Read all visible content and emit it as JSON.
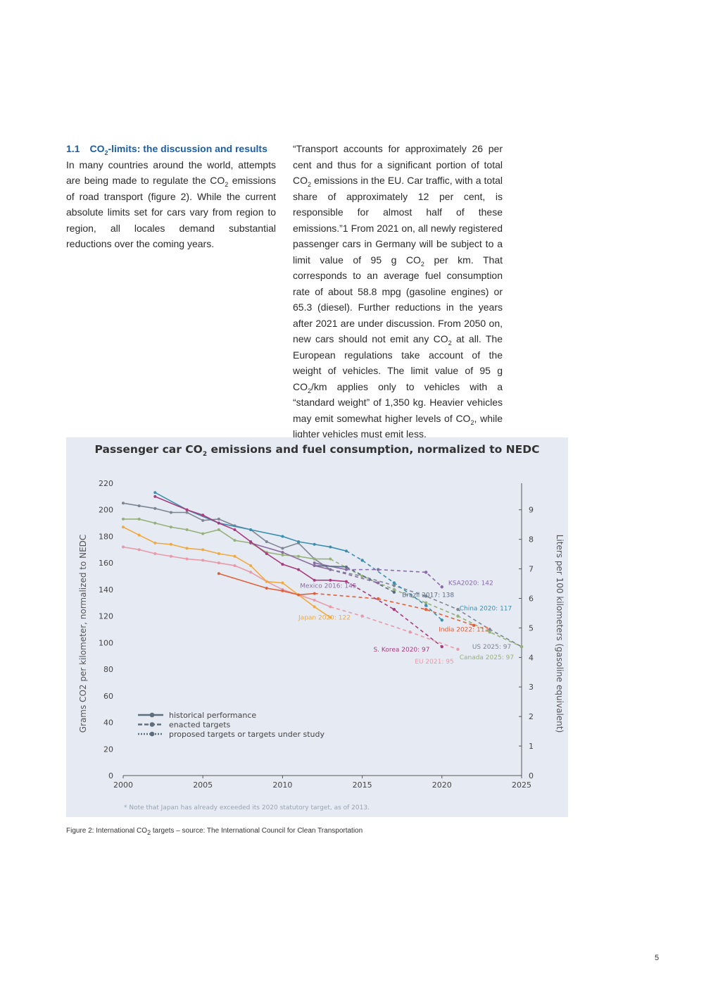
{
  "section": {
    "number": "1.1",
    "title_pre": "CO",
    "title_sub": "2",
    "title_post": "-limits: the discussion and results",
    "p1_a": "In many countries around the world, attempts are being made to regulate the CO",
    "p1_sub": "2",
    "p1_b": " emissions of road transport (figure 2). While the current absolute limits set for cars vary from region to region, all locales demand substantial reductions over the coming years."
  },
  "col2": {
    "t1": "“Transport accounts for approximately 26 per cent and thus for a significant portion of total CO",
    "s1": "2",
    "t2": " emissions in the EU. Car traffic, with a total share of approximately 12 per cent, is responsible for almost half of these emissions.”1 From 2021 on, all newly registered passenger cars in Germany will be subject to a limit value of 95 g CO",
    "s2": "2",
    "t3": " per km. That corresponds to an average fuel consumption rate of about 58.8 mpg (gasoline engines) or 65.3 (diesel). Further reductions in the years after 2021 are under discussion. From 2050 on, new cars should not emit any CO",
    "s3": "2",
    "t4": " at all. The European regulations take account of the weight of vehicles. The limit value of 95 g CO",
    "s4": "2",
    "t5": "/km applies only to vehicles with a “standard weight” of 1,350 kg. Heavier vehicles may emit somewhat higher levels of CO",
    "s5": "2",
    "t6": ", while lighter vehicles must emit less."
  },
  "chart": {
    "title_pre": "Passenger car CO",
    "title_sub": "2",
    "title_post": " emissions and fuel consumption, normalized to NEDC",
    "note": "* Note that Japan has already exceeded its 2020 statutory target, as of 2013."
  },
  "chart_data": {
    "type": "line",
    "ylabel_left": "Grams CO2 per kilometer, normalized to NEDC",
    "ylabel_right": "Liters per 100 kilometers (gasoline equivalent)",
    "xlim": [
      2000,
      2025
    ],
    "ylim": [
      0,
      220
    ],
    "y2lim": [
      0,
      9.9
    ],
    "x_ticks": [
      2000,
      2005,
      2010,
      2015,
      2020,
      2025
    ],
    "y_ticks": [
      0,
      20,
      40,
      60,
      80,
      100,
      120,
      140,
      160,
      180,
      200,
      220
    ],
    "y2_ticks": [
      0,
      1,
      2,
      3,
      4,
      5,
      6,
      7,
      8,
      9
    ],
    "legend": [
      {
        "label": "historical performance",
        "style": "solid"
      },
      {
        "label": "enacted targets",
        "style": "dashed"
      },
      {
        "label": "proposed targets or targets under study",
        "style": "dotted"
      }
    ],
    "series": [
      {
        "name": "US 2025: 97",
        "color": "#7e8591",
        "historical": [
          [
            2000,
            205
          ],
          [
            2001,
            203
          ],
          [
            2002,
            201
          ],
          [
            2003,
            198
          ],
          [
            2004,
            198
          ],
          [
            2005,
            192
          ],
          [
            2006,
            193
          ],
          [
            2007,
            188
          ],
          [
            2008,
            185
          ],
          [
            2009,
            176
          ],
          [
            2010,
            171
          ],
          [
            2011,
            175
          ],
          [
            2012,
            163
          ],
          [
            2013,
            155
          ]
        ],
        "enacted": [
          [
            2013,
            155
          ],
          [
            2015,
            150
          ],
          [
            2017,
            143
          ],
          [
            2019,
            135
          ],
          [
            2021,
            125
          ],
          [
            2023,
            110
          ],
          [
            2025,
            97
          ]
        ],
        "label_at": [
          2021.9,
          97
        ]
      },
      {
        "name": "Canada 2025: 97",
        "color": "#97b07a",
        "historical": [
          [
            2000,
            193
          ],
          [
            2001,
            193
          ],
          [
            2002,
            190
          ],
          [
            2003,
            187
          ],
          [
            2004,
            185
          ],
          [
            2005,
            182
          ],
          [
            2006,
            185
          ],
          [
            2007,
            177
          ],
          [
            2008,
            175
          ],
          [
            2009,
            168
          ],
          [
            2010,
            166
          ],
          [
            2011,
            165
          ],
          [
            2012,
            163
          ],
          [
            2013,
            163
          ]
        ],
        "enacted": [
          [
            2013,
            163
          ],
          [
            2015,
            150
          ],
          [
            2017,
            140
          ],
          [
            2019,
            130
          ],
          [
            2021,
            120
          ],
          [
            2023,
            108
          ],
          [
            2025,
            97
          ]
        ],
        "label_at": [
          2021.1,
          89
        ]
      },
      {
        "name": "China 2020: 117",
        "color": "#3b8fae",
        "historical": [
          [
            2002,
            213
          ],
          [
            2004,
            200
          ],
          [
            2006,
            190
          ],
          [
            2008,
            185
          ],
          [
            2010,
            180
          ],
          [
            2011,
            176
          ],
          [
            2012,
            174
          ],
          [
            2013,
            172
          ],
          [
            2014,
            169
          ]
        ],
        "enacted": [
          [
            2014,
            169
          ],
          [
            2015,
            162
          ],
          [
            2017,
            145
          ],
          [
            2019,
            128
          ],
          [
            2020,
            117
          ]
        ],
        "label_at": [
          2021.1,
          126
        ]
      },
      {
        "name": "KSA2020: 142",
        "color": "#8a6aa8",
        "historical": [
          [
            2012,
            160
          ],
          [
            2014,
            155
          ]
        ],
        "enacted": [
          [
            2014,
            155
          ],
          [
            2016,
            155
          ],
          [
            2019,
            153
          ],
          [
            2020,
            142
          ]
        ],
        "label_at": [
          2020.4,
          145
        ]
      },
      {
        "name": "Brazil 2017: 138",
        "color": "#5a6d80",
        "historical": [
          [
            2012,
            158
          ],
          [
            2014,
            157
          ]
        ],
        "enacted": [
          [
            2014,
            157
          ],
          [
            2017,
            138
          ]
        ],
        "label_at": [
          2017.5,
          136
        ]
      },
      {
        "name": "Mexico 2016: 145",
        "color": "#8c6d9e",
        "historical": [
          [
            2008,
            175
          ],
          [
            2010,
            168
          ],
          [
            2012,
            158
          ],
          [
            2013,
            155
          ]
        ],
        "enacted": [
          [
            2013,
            155
          ],
          [
            2016,
            145
          ]
        ],
        "label_at": [
          2011.1,
          143
        ]
      },
      {
        "name": "EU 2021: 95",
        "color": "#e89aa8",
        "historical": [
          [
            2000,
            172
          ],
          [
            2001,
            170
          ],
          [
            2002,
            167
          ],
          [
            2003,
            165
          ],
          [
            2004,
            163
          ],
          [
            2005,
            162
          ],
          [
            2006,
            160
          ],
          [
            2007,
            158
          ],
          [
            2008,
            153
          ],
          [
            2009,
            146
          ],
          [
            2010,
            140
          ],
          [
            2011,
            136
          ],
          [
            2012,
            132
          ],
          [
            2013,
            127
          ]
        ],
        "enacted": [
          [
            2013,
            127
          ],
          [
            2015,
            120
          ],
          [
            2018,
            108
          ],
          [
            2021,
            95
          ]
        ],
        "label_at": [
          2018.3,
          86
        ]
      },
      {
        "name": "Japan 2020: 122",
        "color": "#f2a93d",
        "historical": [
          [
            2000,
            187
          ],
          [
            2001,
            181
          ],
          [
            2002,
            175
          ],
          [
            2003,
            174
          ],
          [
            2004,
            171
          ],
          [
            2005,
            170
          ],
          [
            2006,
            167
          ],
          [
            2007,
            165
          ],
          [
            2008,
            158
          ],
          [
            2009,
            146
          ],
          [
            2010,
            145
          ],
          [
            2011,
            136
          ],
          [
            2012,
            127
          ],
          [
            2013,
            119
          ]
        ],
        "enacted": [],
        "label_at": [
          2011.0,
          119
        ]
      },
      {
        "name": "India 2022: 113",
        "color": "#e0603a",
        "historical": [
          [
            2006,
            152
          ],
          [
            2009,
            141
          ],
          [
            2010,
            139
          ],
          [
            2011,
            136
          ],
          [
            2012,
            137
          ]
        ],
        "enacted": [
          [
            2012,
            137
          ],
          [
            2016,
            133
          ],
          [
            2019,
            125
          ],
          [
            2022,
            113
          ]
        ],
        "label_at": [
          2019.8,
          110
        ]
      },
      {
        "name": "S. Korea 2020: 97",
        "color": "#a83c7c",
        "historical": [
          [
            2002,
            210
          ],
          [
            2004,
            200
          ],
          [
            2005,
            196
          ],
          [
            2006,
            190
          ],
          [
            2007,
            185
          ],
          [
            2008,
            176
          ],
          [
            2009,
            167
          ],
          [
            2010,
            159
          ],
          [
            2011,
            155
          ],
          [
            2012,
            147
          ],
          [
            2013,
            147
          ],
          [
            2014,
            146
          ]
        ],
        "enacted": [
          [
            2014,
            146
          ],
          [
            2017,
            125
          ],
          [
            2020,
            97
          ]
        ],
        "label_at": [
          2015.7,
          95
        ]
      }
    ]
  },
  "caption": {
    "pre": "Figure 2: International CO",
    "sub": "2",
    "post": " targets – source: The International Council for Clean Transportation"
  },
  "page_number": "5"
}
